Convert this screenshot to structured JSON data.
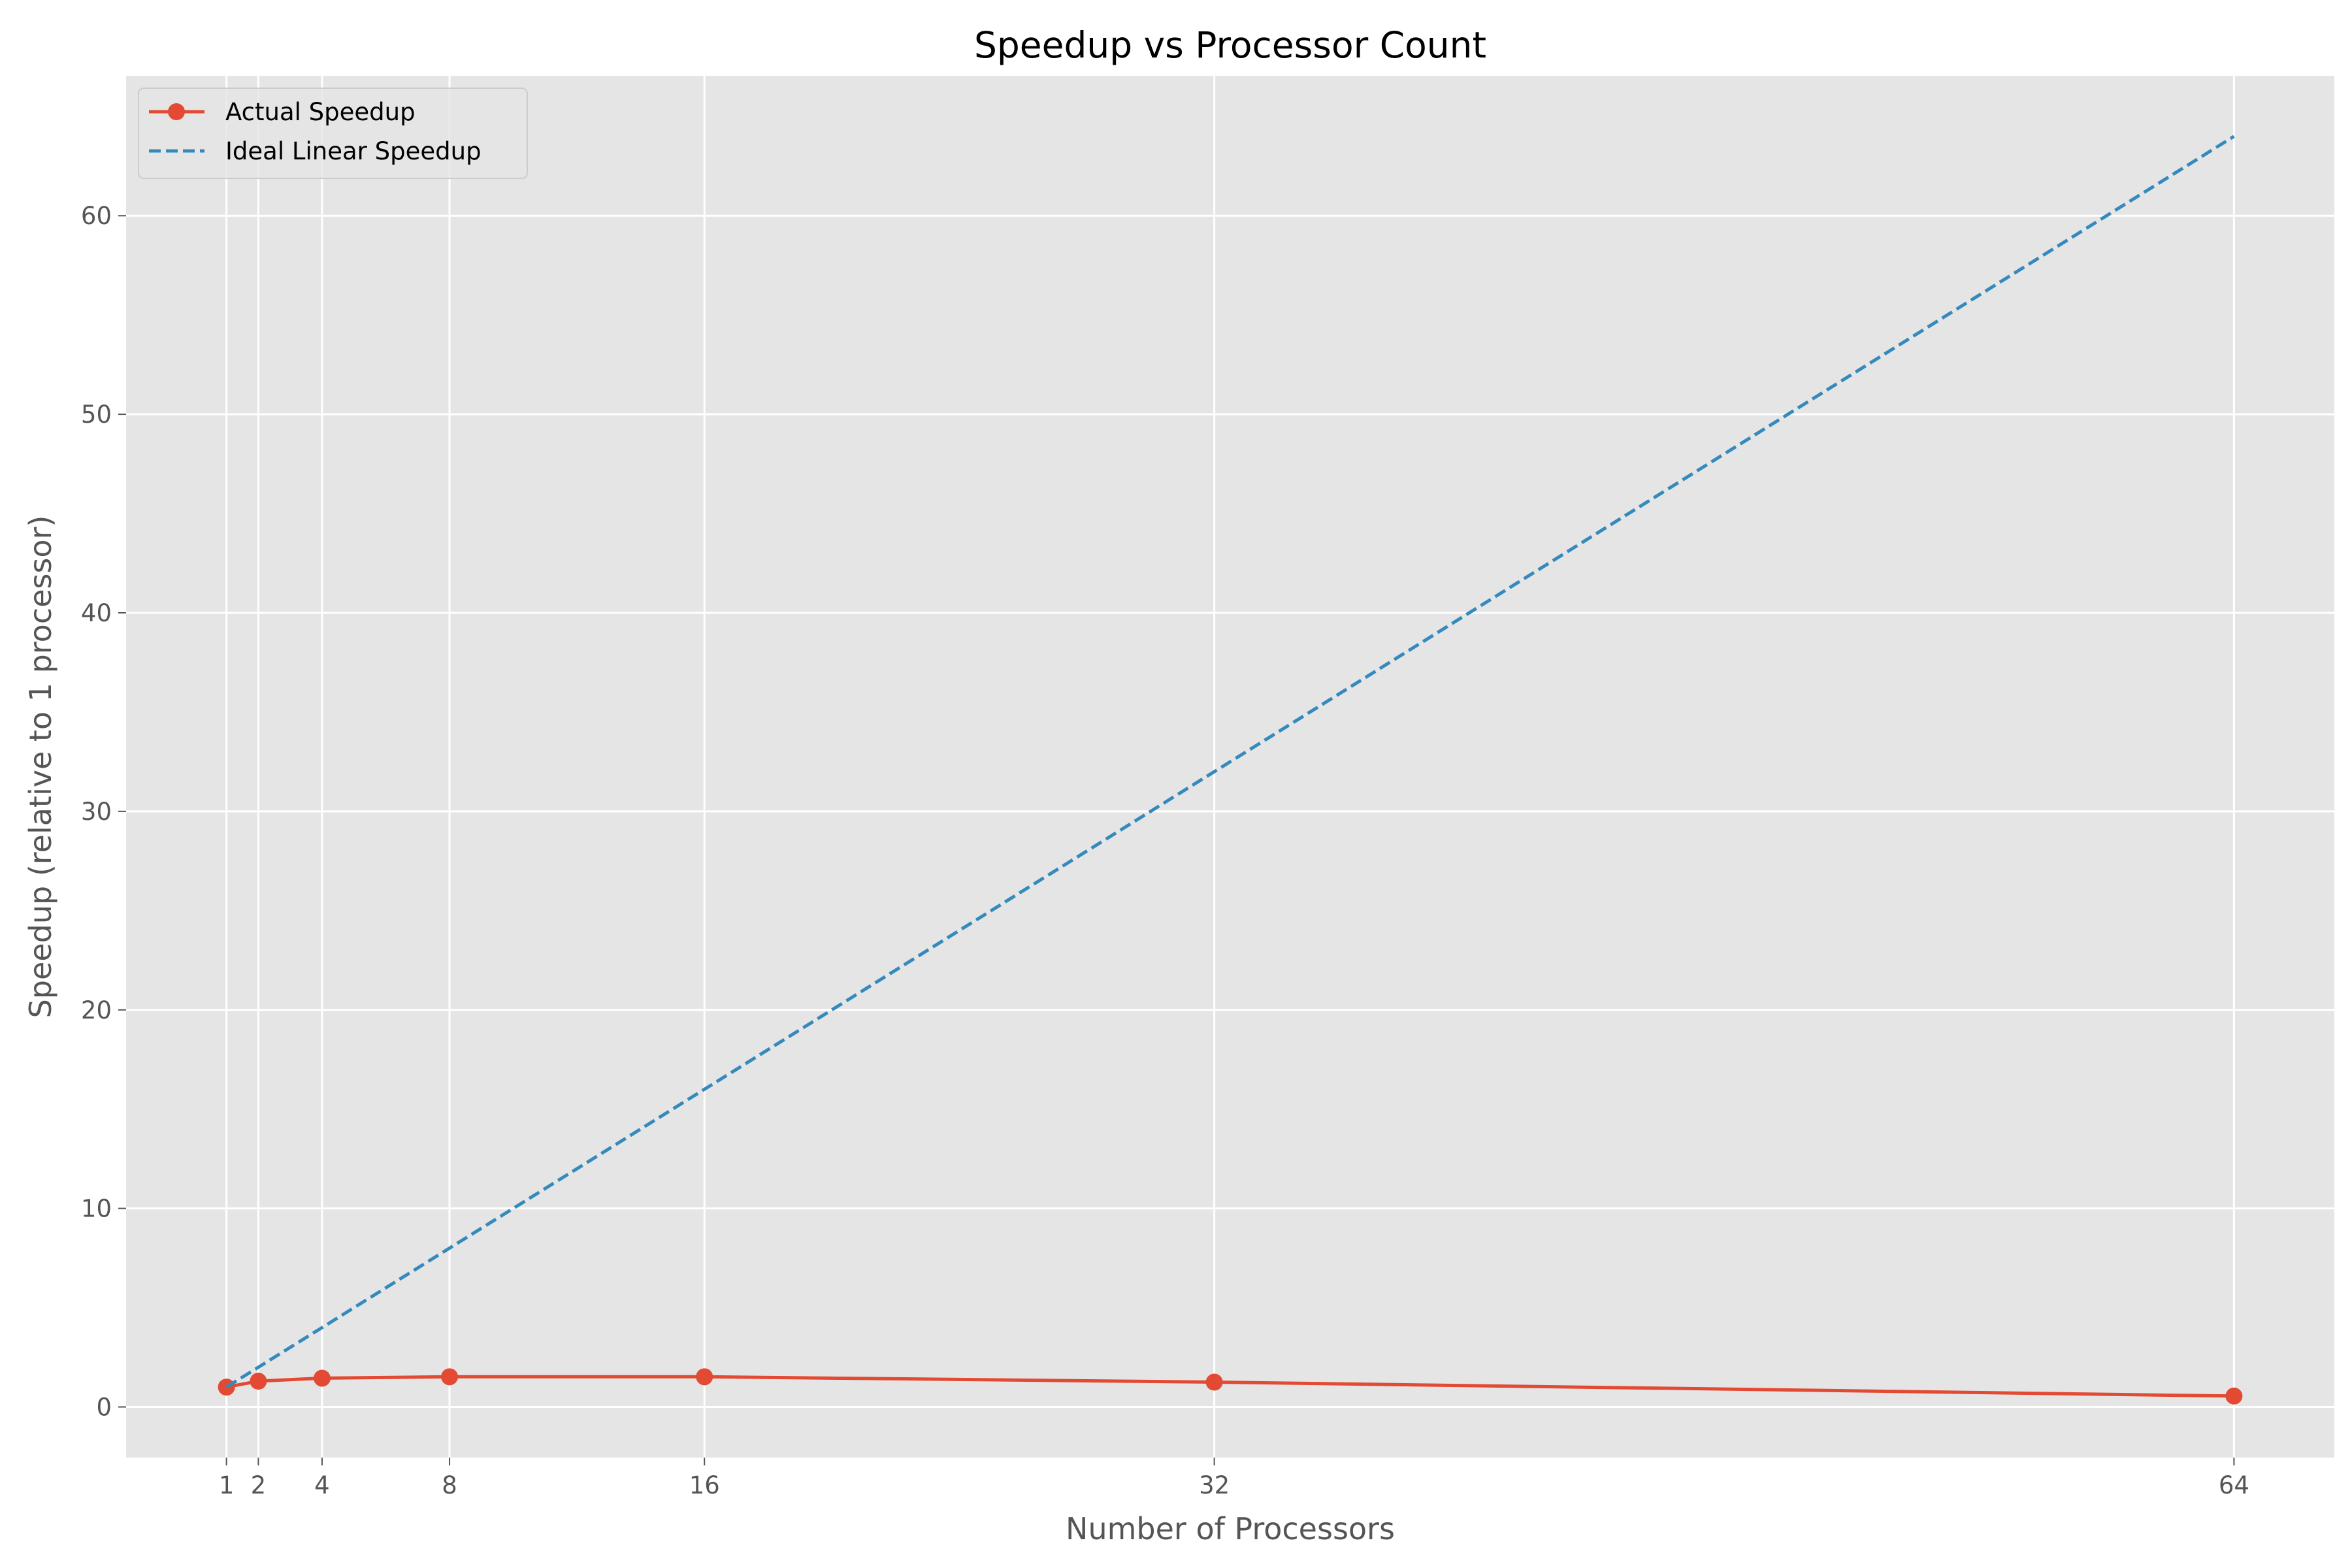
{
  "chart_data": {
    "type": "line",
    "title": "Speedup vs Processor Count",
    "xlabel": "Number of Processors",
    "ylabel": "Speedup (relative to 1 processor)",
    "x": [
      1,
      2,
      4,
      8,
      16,
      32,
      64
    ],
    "xticks": [
      1,
      2,
      4,
      8,
      16,
      32,
      64
    ],
    "yticks": [
      0,
      10,
      20,
      30,
      40,
      50,
      60
    ],
    "xlim": [
      -2.15,
      67.15
    ],
    "ylim": [
      -2.55,
      67.05
    ],
    "grid": true,
    "legend_position": "top-left",
    "series": [
      {
        "name": "Actual Speedup",
        "style": "solid",
        "marker": "circle",
        "color": "#E24A33",
        "values": [
          1.0,
          1.3,
          1.45,
          1.52,
          1.52,
          1.25,
          0.55
        ]
      },
      {
        "name": "Ideal Linear Speedup",
        "style": "dashed",
        "marker": "none",
        "color": "#348ABD",
        "values": [
          1,
          2,
          4,
          8,
          16,
          32,
          64
        ]
      }
    ],
    "colors": {
      "plot_background": "#E5E5E5",
      "grid": "#FFFFFF",
      "tick_text": "#555555",
      "title_text": "#000000"
    }
  }
}
